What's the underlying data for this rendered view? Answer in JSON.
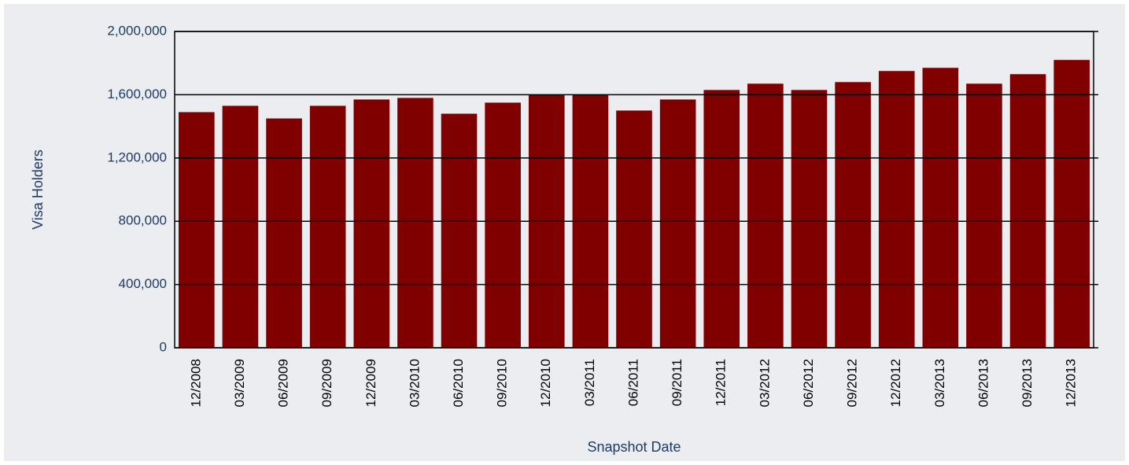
{
  "chart_data": {
    "type": "bar",
    "xlabel": "Snapshot Date",
    "ylabel": "Visa Holders",
    "categories": [
      "12/2008",
      "03/2009",
      "06/2009",
      "09/2009",
      "12/2009",
      "03/2010",
      "06/2010",
      "09/2010",
      "12/2010",
      "03/2011",
      "06/2011",
      "09/2011",
      "12/2011",
      "03/2012",
      "06/2012",
      "09/2012",
      "12/2012",
      "03/2013",
      "06/2013",
      "09/2013",
      "12/2013"
    ],
    "values": [
      1490000,
      1530000,
      1450000,
      1530000,
      1570000,
      1580000,
      1480000,
      1550000,
      1600000,
      1600000,
      1500000,
      1570000,
      1630000,
      1670000,
      1630000,
      1680000,
      1750000,
      1770000,
      1670000,
      1730000,
      1820000
    ],
    "color": "#800000",
    "ylim": [
      0,
      2000000
    ],
    "yticks": [
      0,
      {
        "value": 400000,
        "label": "400,000"
      },
      {
        "value": 800000,
        "label": "800,000"
      },
      {
        "value": 1200000,
        "label": "1,200,000"
      },
      {
        "value": 1600000,
        "label": "1,600,000"
      },
      {
        "value": 2000000,
        "label": "2,000,000"
      }
    ],
    "grid": true
  }
}
